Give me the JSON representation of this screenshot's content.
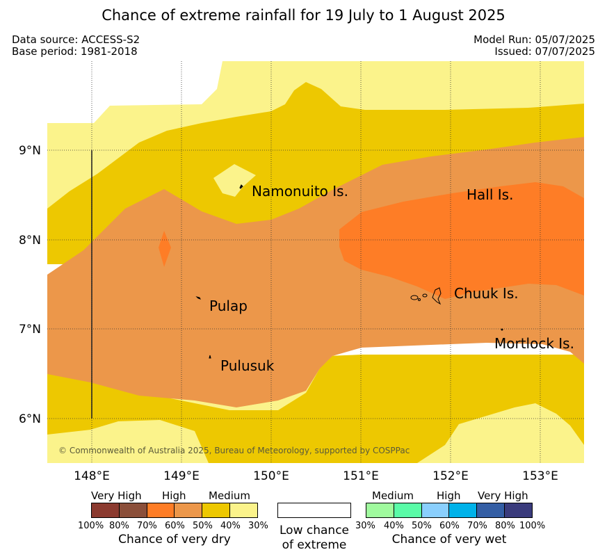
{
  "title": "Chance of extreme rainfall for 19 July to 1 August 2025",
  "data_source": "Data source: ACCESS-S2",
  "base_period": "Base period: 1981-2018",
  "model_run": "Model Run: 05/07/2025",
  "issued": "Issued: 07/07/2025",
  "copyright": "© Commonwealth of Australia 2025, Bureau of Meteorology, supported by COSPPac",
  "axes": {
    "lon_labels": [
      "148°E",
      "149°E",
      "150°E",
      "151°E",
      "152°E",
      "153°E"
    ],
    "lat_labels": [
      "9°N",
      "8°N",
      "7°N",
      "6°N"
    ]
  },
  "places": {
    "namonuito": "Namonuito Is.",
    "hall": "Hall Is.",
    "pulap": "Pulap",
    "chuuk": "Chuuk Is.",
    "mortlock": "Mortlock Is.",
    "pulusuk": "Pulusuk"
  },
  "colors": {
    "dry_100_80": "#8b3a2f",
    "dry_80_70": "#8b4f3a",
    "dry_70_60": "#fe7d26",
    "dry_60_50": "#ec974a",
    "dry_50_40": "#edc801",
    "dry_40_30": "#fbf38b",
    "wet_30_40": "#a0fa9e",
    "wet_40_50": "#5afba7",
    "wet_50_60": "#8acffd",
    "wet_60_70": "#00b2e9",
    "wet_70_80": "#345ea4",
    "wet_80_100": "#3a3b7c",
    "land": "#000000"
  },
  "legend": {
    "dry": {
      "cat_very_high": "Very High",
      "cat_high": "High",
      "cat_medium": "Medium",
      "ticks": [
        "100%",
        "80%",
        "70%",
        "60%",
        "50%",
        "40%",
        "30%"
      ],
      "caption": "Chance of very dry"
    },
    "low": {
      "line1": "Low chance",
      "line2": "of extreme"
    },
    "wet": {
      "cat_medium": "Medium",
      "cat_high": "High",
      "cat_very_high": "Very High",
      "ticks": [
        "30%",
        "40%",
        "50%",
        "60%",
        "70%",
        "80%",
        "100%"
      ],
      "caption": "Chance of very wet"
    }
  }
}
